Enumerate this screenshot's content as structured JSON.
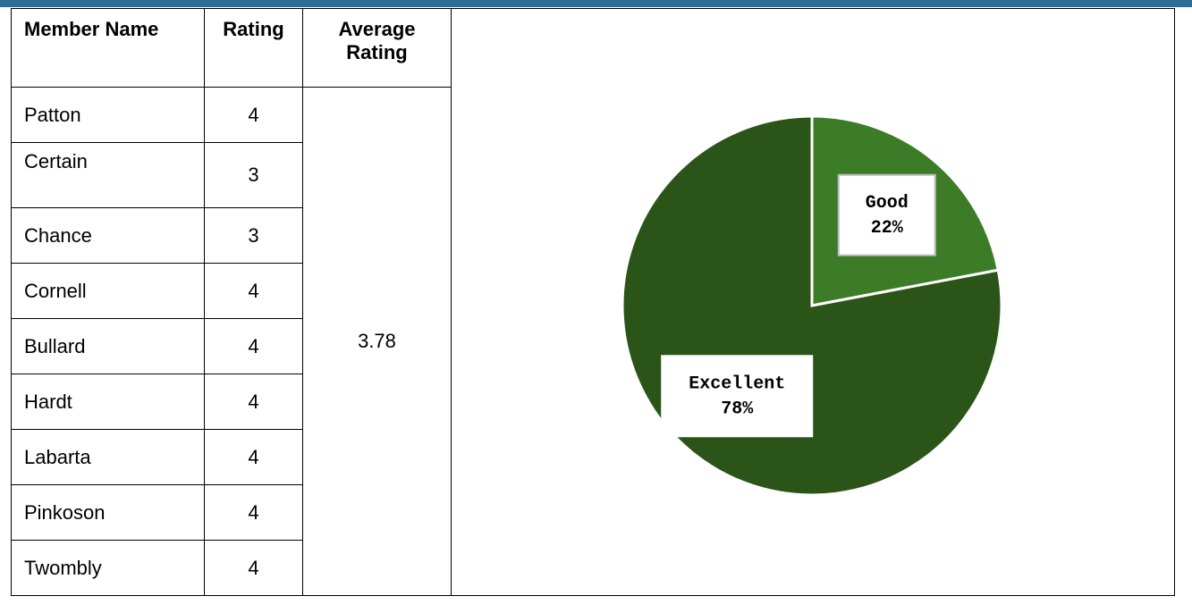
{
  "table": {
    "headers": [
      "Member Name",
      "Rating",
      "Average Rating"
    ],
    "rows": [
      [
        "Patton",
        4
      ],
      [
        "Certain",
        3
      ],
      [
        "Chance",
        3
      ],
      [
        "Cornell",
        4
      ],
      [
        "Bullard",
        4
      ],
      [
        "Hardt",
        4
      ],
      [
        "Labarta",
        4
      ],
      [
        "Pinkoson",
        4
      ],
      [
        "Twombly",
        4
      ]
    ],
    "average": 3.78
  },
  "chart_data": {
    "type": "pie",
    "categories": [
      "Good",
      "Excellent"
    ],
    "values": [
      22,
      78
    ],
    "value_labels": [
      "22%",
      "78%"
    ],
    "colors": [
      "#3d7c26",
      "#2b5419"
    ]
  }
}
